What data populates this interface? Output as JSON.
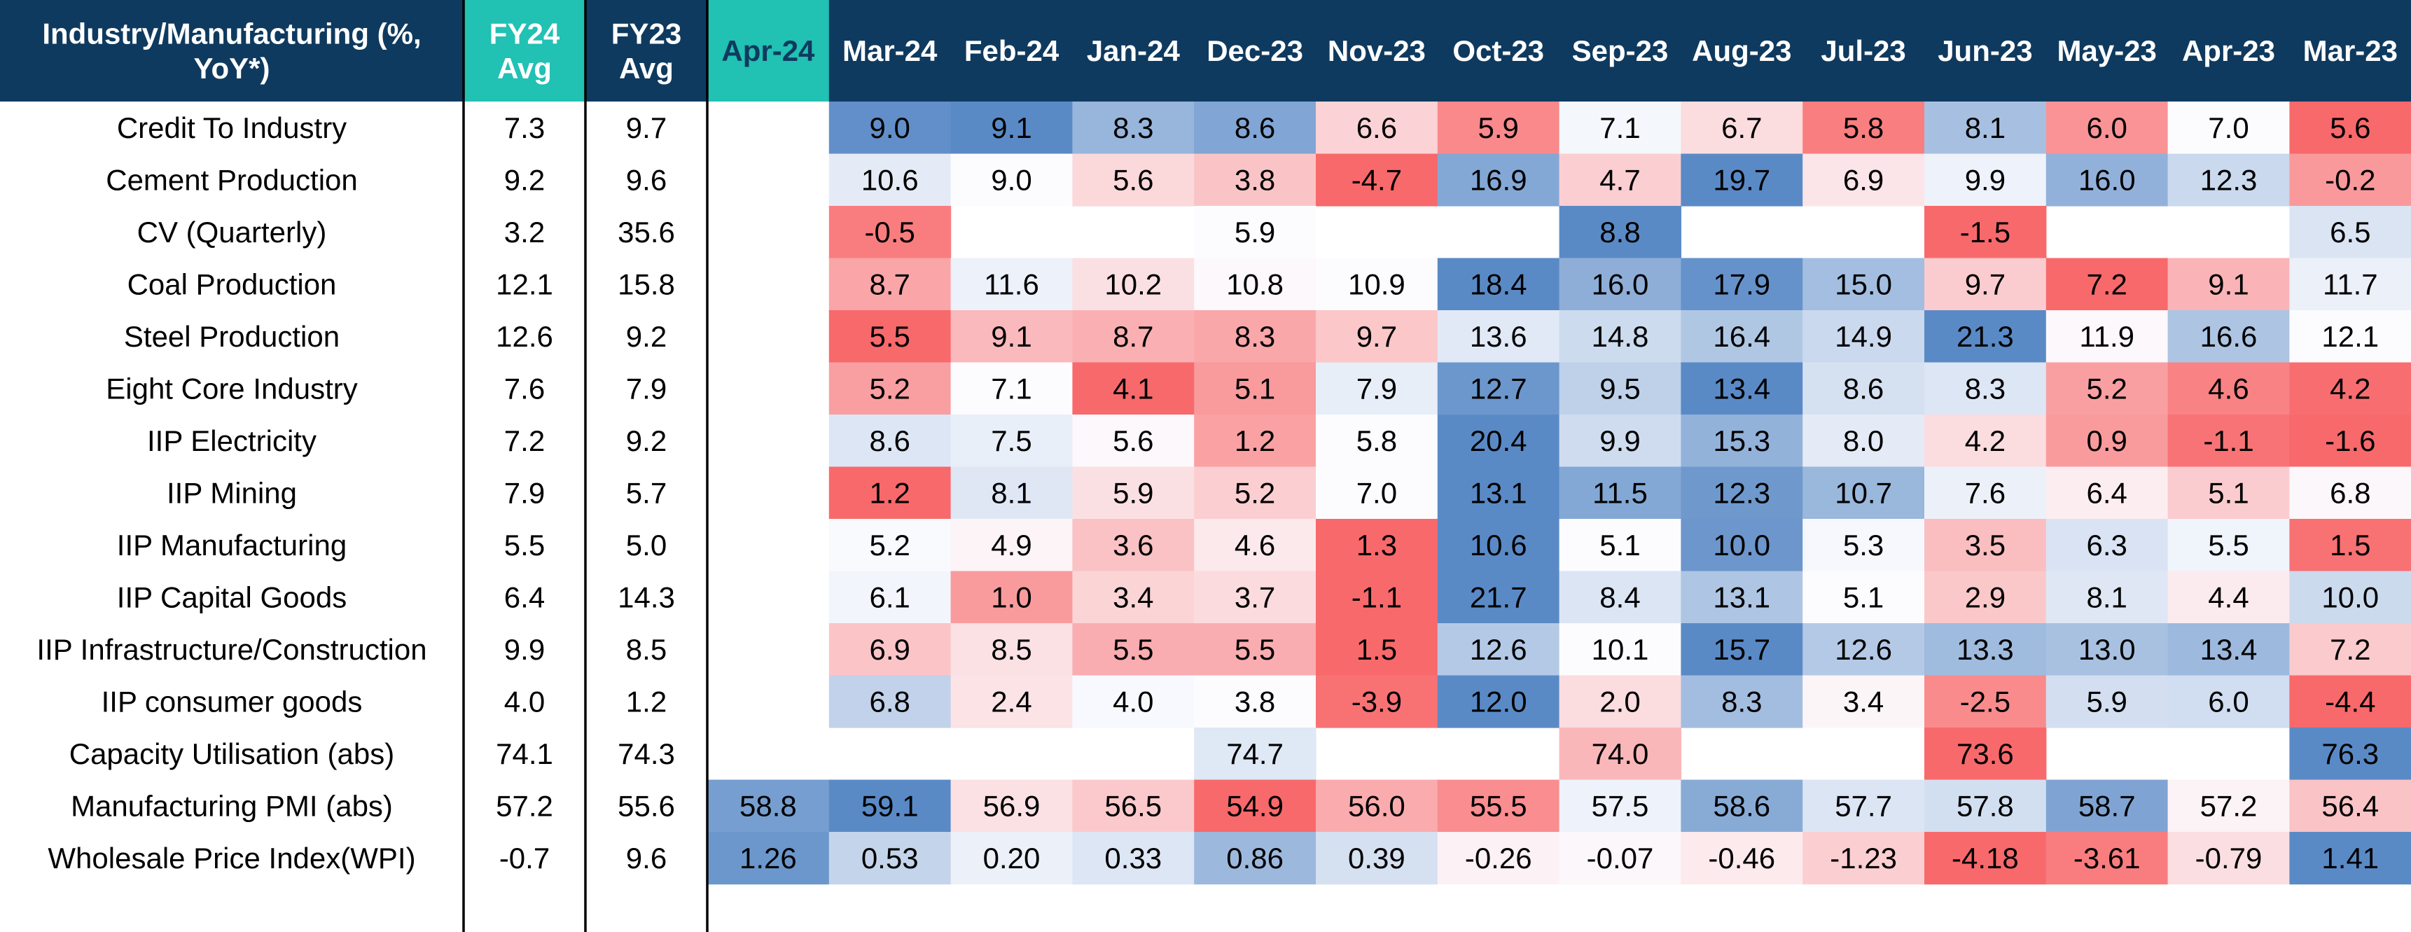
{
  "chart_data": {
    "type": "heatmap",
    "title": "",
    "corner_header": "Industry/Manufacturing (%, YoY*)",
    "summary_columns": [
      "FY24 Avg",
      "FY23 Avg"
    ],
    "months": [
      "Apr-24",
      "Mar-24",
      "Feb-24",
      "Jan-24",
      "Dec-23",
      "Nov-23",
      "Oct-23",
      "Sep-23",
      "Aug-23",
      "Jul-23",
      "Jun-23",
      "May-23",
      "Apr-23",
      "Mar-23"
    ],
    "colors": {
      "header_bg": "#0f3a5f",
      "highlight_header_bg": "#21c1b3",
      "header_text": "#ffffff",
      "low": "#f8696b",
      "mid": "#fcfcff",
      "high": "#5a8ac6",
      "border": "#000000"
    },
    "rows": [
      {
        "label": "Credit To Industry",
        "fy24": "7.3",
        "fy23": "9.7",
        "values": [
          "",
          "9.0",
          "9.1",
          "8.3",
          "8.6",
          "6.6",
          "5.9",
          "7.1",
          "6.7",
          "5.8",
          "8.1",
          "6.0",
          "7.0",
          "5.6"
        ]
      },
      {
        "label": "Cement Production",
        "fy24": "9.2",
        "fy23": "9.6",
        "values": [
          "",
          "10.6",
          "9.0",
          "5.6",
          "3.8",
          "-4.7",
          "16.9",
          "4.7",
          "19.7",
          "6.9",
          "9.9",
          "16.0",
          "12.3",
          "-0.2"
        ]
      },
      {
        "label": "CV (Quarterly)",
        "fy24": "3.2",
        "fy23": "35.6",
        "values": [
          "",
          "-0.5",
          "",
          "",
          "5.9",
          "",
          "",
          "8.8",
          "",
          "",
          "-1.5",
          "",
          "",
          "6.5"
        ]
      },
      {
        "label": "Coal Production",
        "fy24": "12.1",
        "fy23": "15.8",
        "values": [
          "",
          "8.7",
          "11.6",
          "10.2",
          "10.8",
          "10.9",
          "18.4",
          "16.0",
          "17.9",
          "15.0",
          "9.7",
          "7.2",
          "9.1",
          "11.7"
        ]
      },
      {
        "label": "Steel Production",
        "fy24": "12.6",
        "fy23": "9.2",
        "values": [
          "",
          "5.5",
          "9.1",
          "8.7",
          "8.3",
          "9.7",
          "13.6",
          "14.8",
          "16.4",
          "14.9",
          "21.3",
          "11.9",
          "16.6",
          "12.1"
        ]
      },
      {
        "label": "Eight Core Industry",
        "fy24": "7.6",
        "fy23": "7.9",
        "values": [
          "",
          "5.2",
          "7.1",
          "4.1",
          "5.1",
          "7.9",
          "12.7",
          "9.5",
          "13.4",
          "8.6",
          "8.3",
          "5.2",
          "4.6",
          "4.2"
        ]
      },
      {
        "label": "IIP Electricity",
        "fy24": "7.2",
        "fy23": "9.2",
        "values": [
          "",
          "8.6",
          "7.5",
          "5.6",
          "1.2",
          "5.8",
          "20.4",
          "9.9",
          "15.3",
          "8.0",
          "4.2",
          "0.9",
          "-1.1",
          "-1.6"
        ]
      },
      {
        "label": "IIP Mining",
        "fy24": "7.9",
        "fy23": "5.7",
        "values": [
          "",
          "1.2",
          "8.1",
          "5.9",
          "5.2",
          "7.0",
          "13.1",
          "11.5",
          "12.3",
          "10.7",
          "7.6",
          "6.4",
          "5.1",
          "6.8"
        ]
      },
      {
        "label": "IIP Manufacturing",
        "fy24": "5.5",
        "fy23": "5.0",
        "values": [
          "",
          "5.2",
          "4.9",
          "3.6",
          "4.6",
          "1.3",
          "10.6",
          "5.1",
          "10.0",
          "5.3",
          "3.5",
          "6.3",
          "5.5",
          "1.5"
        ]
      },
      {
        "label": "IIP Capital Goods",
        "fy24": "6.4",
        "fy23": "14.3",
        "values": [
          "",
          "6.1",
          "1.0",
          "3.4",
          "3.7",
          "-1.1",
          "21.7",
          "8.4",
          "13.1",
          "5.1",
          "2.9",
          "8.1",
          "4.4",
          "10.0"
        ]
      },
      {
        "label": "IIP Infrastructure/Construction",
        "fy24": "9.9",
        "fy23": "8.5",
        "values": [
          "",
          "6.9",
          "8.5",
          "5.5",
          "5.5",
          "1.5",
          "12.6",
          "10.1",
          "15.7",
          "12.6",
          "13.3",
          "13.0",
          "13.4",
          "7.2"
        ]
      },
      {
        "label": "IIP consumer goods",
        "fy24": "4.0",
        "fy23": "1.2",
        "values": [
          "",
          "6.8",
          "2.4",
          "4.0",
          "3.8",
          "-3.9",
          "12.0",
          "2.0",
          "8.3",
          "3.4",
          "-2.5",
          "5.9",
          "6.0",
          "-4.4"
        ]
      },
      {
        "label": "Capacity Utilisation (abs)",
        "fy24": "74.1",
        "fy23": "74.3",
        "values": [
          "",
          "",
          "",
          "",
          "74.7",
          "",
          "",
          "74.0",
          "",
          "",
          "73.6",
          "",
          "",
          "76.3"
        ]
      },
      {
        "label": "Manufacturing PMI (abs)",
        "fy24": "57.2",
        "fy23": "55.6",
        "values": [
          "58.8",
          "59.1",
          "56.9",
          "56.5",
          "54.9",
          "56.0",
          "55.5",
          "57.5",
          "58.6",
          "57.7",
          "57.8",
          "58.7",
          "57.2",
          "56.4"
        ]
      },
      {
        "label": "Wholesale Price Index(WPI)",
        "fy24": "-0.7",
        "fy23": "9.6",
        "values": [
          "1.26",
          "0.53",
          "0.20",
          "0.33",
          "0.86",
          "0.39",
          "-0.26",
          "-0.07",
          "-0.46",
          "-1.23",
          "-4.18",
          "-3.61",
          "-0.79",
          "1.41"
        ]
      }
    ]
  }
}
